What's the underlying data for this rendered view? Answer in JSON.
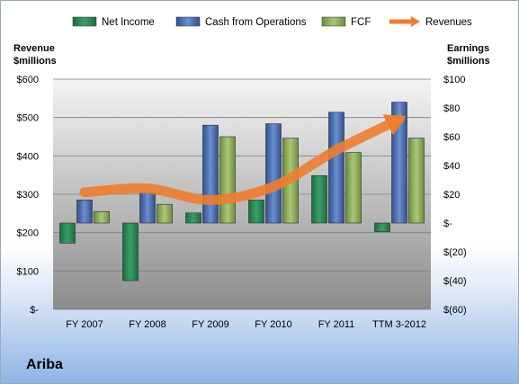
{
  "chart_data": {
    "type": "bar",
    "company": "Ariba",
    "categories": [
      "FY 2007",
      "FY 2008",
      "FY 2009",
      "FY 2010",
      "FY 2011",
      "TTM 3-2012"
    ],
    "series": [
      {
        "name": "Net Income",
        "axis": "right",
        "color": "#2e8b57",
        "values": [
          -14,
          -40,
          7,
          16,
          33,
          -6
        ]
      },
      {
        "name": "Cash from Operations",
        "axis": "right",
        "color": "#4f74b8",
        "values": [
          16,
          21,
          68,
          69,
          77,
          84
        ]
      },
      {
        "name": "FCF",
        "axis": "right",
        "color": "#8fb15a",
        "values": [
          8,
          13,
          60,
          59,
          49,
          59
        ]
      },
      {
        "name": "Revenues",
        "axis": "left",
        "type": "line",
        "color": "#ed7d31",
        "values": [
          305,
          315,
          285,
          320,
          415,
          495
        ]
      }
    ],
    "left_axis": {
      "title_lines": [
        "Revenue",
        "$millions"
      ],
      "ylim": [
        0,
        600
      ],
      "ticks": [
        "$-",
        "$100",
        "$200",
        "$300",
        "$400",
        "$500",
        "$600"
      ]
    },
    "right_axis": {
      "title_lines": [
        "Earnings",
        "$millions"
      ],
      "ylim": [
        -60,
        100
      ],
      "ticks": [
        "$(60)",
        "$(40)",
        "$(20)",
        "$-",
        "$20",
        "$40",
        "$60",
        "$80",
        "$100"
      ]
    },
    "legend_position": "top",
    "grid": true
  }
}
